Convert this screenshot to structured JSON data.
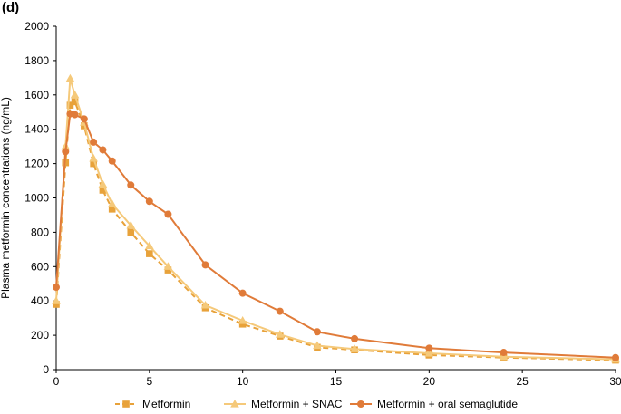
{
  "panel_label": "(d)",
  "chart_data": {
    "type": "line",
    "title": "",
    "xlabel": "",
    "ylabel": "Plasma metformin concentrations (ng/mL)",
    "xlim": [
      0,
      30
    ],
    "ylim": [
      0,
      2000
    ],
    "xticks": [
      0,
      5,
      10,
      15,
      20,
      25,
      30
    ],
    "yticks": [
      0,
      200,
      400,
      600,
      800,
      1000,
      1200,
      1400,
      1600,
      1800,
      2000
    ],
    "grid": false,
    "legend_position": "bottom",
    "series": [
      {
        "name": "Metformin",
        "color": "#E8A23A",
        "line": "dashed",
        "marker": "square",
        "x": [
          0,
          0.5,
          0.75,
          1,
          1.5,
          2,
          2.5,
          3,
          4,
          5,
          6,
          8,
          10,
          12,
          14,
          16,
          20,
          24,
          30
        ],
        "y": [
          380,
          1205,
          1540,
          1560,
          1420,
          1200,
          1045,
          935,
          800,
          675,
          580,
          360,
          265,
          195,
          130,
          115,
          85,
          70,
          55
        ]
      },
      {
        "name": "Metformin + SNAC",
        "color": "#F5C97A",
        "line": "solid",
        "marker": "triangle",
        "x": [
          0,
          0.5,
          0.75,
          1,
          1.5,
          2,
          2.5,
          3,
          4,
          5,
          6,
          8,
          10,
          12,
          14,
          16,
          20,
          24,
          30
        ],
        "y": [
          400,
          1300,
          1695,
          1600,
          1440,
          1230,
          1080,
          965,
          840,
          720,
          600,
          375,
          285,
          205,
          140,
          120,
          95,
          75,
          60
        ]
      },
      {
        "name": "Metformin + oral semaglutide",
        "color": "#E07B39",
        "line": "solid",
        "marker": "circle",
        "x": [
          0,
          0.5,
          0.75,
          1,
          1.5,
          2,
          2.5,
          3,
          4,
          5,
          6,
          8,
          10,
          12,
          14,
          16,
          20,
          24,
          30
        ],
        "y": [
          480,
          1270,
          1490,
          1485,
          1460,
          1325,
          1280,
          1215,
          1075,
          980,
          905,
          610,
          445,
          340,
          220,
          180,
          125,
          100,
          70
        ]
      }
    ]
  }
}
